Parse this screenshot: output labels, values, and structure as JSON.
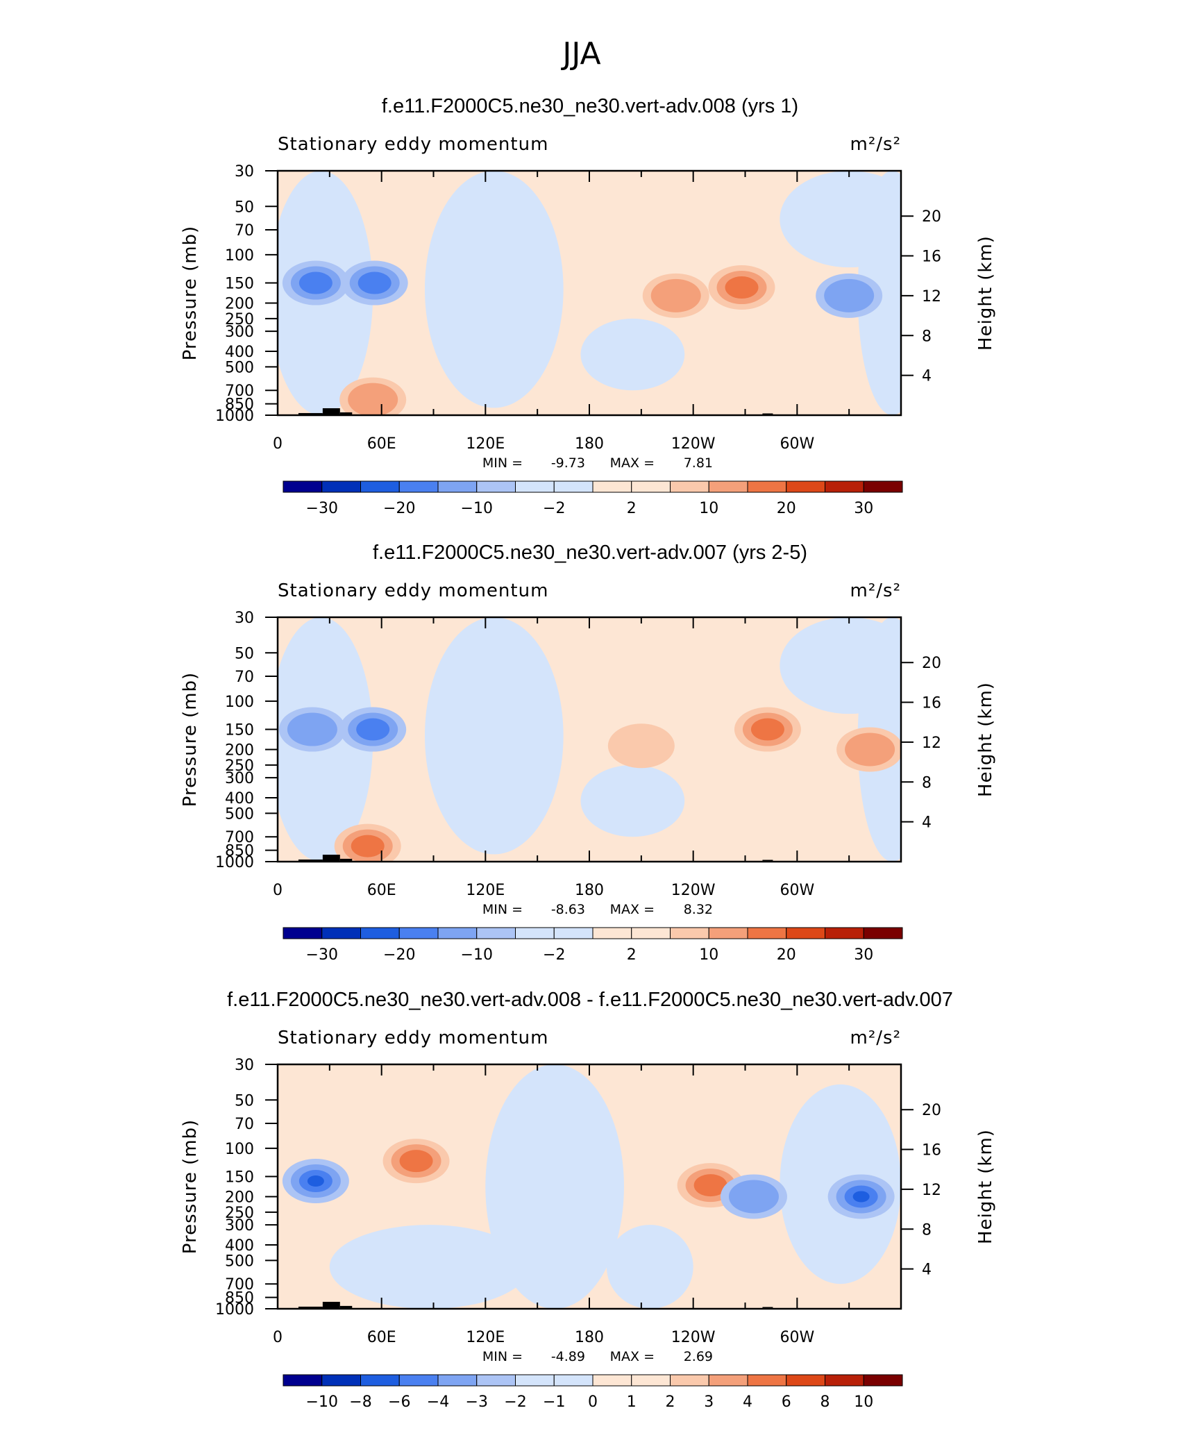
{
  "figure_title": "JJA",
  "colors": {
    "blue": [
      "#00008f",
      "#0030b8",
      "#1e5ee0",
      "#4a80f0",
      "#7ea4f2",
      "#acc4f5",
      "#d4e4fb"
    ],
    "red": [
      "#fde6d4",
      "#fac9ac",
      "#f4a07a",
      "#ee7544",
      "#dd4818",
      "#b82008",
      "#7a0000"
    ],
    "topography": "#000000"
  },
  "chart_data": [
    {
      "type": "contour",
      "title": "f.e11.F2000C5.ne30_ne30.vert-adv.008 (yrs 1)",
      "left_string": "Stationary eddy momentum",
      "units": "m²/s²",
      "ylabel": "Pressure  (mb)",
      "ylabel_right": "Height  (km)",
      "pressure_ticks": [
        "30",
        "50",
        "70",
        "100",
        "150",
        "200",
        "250",
        "300",
        "400",
        "500",
        "700",
        "850",
        "1000"
      ],
      "height_ticks": [
        "20",
        "16",
        "12",
        "8",
        "4"
      ],
      "xticks": [
        "0",
        "60E",
        "120E",
        "180",
        "120W",
        "60W"
      ],
      "min_label": "MIN =",
      "min_value": "-9.73",
      "max_label": "MAX =",
      "max_value": "7.81",
      "colorbar_labels": [
        "−30",
        "−20",
        "−10",
        "−2",
        "2",
        "10",
        "20",
        "30"
      ],
      "features": [
        {
          "lon": 22,
          "p": 150,
          "value": -8
        },
        {
          "lon": 56,
          "p": 150,
          "value": -7
        },
        {
          "lon": 55,
          "p": 800,
          "value": 6
        },
        {
          "lon": 268,
          "p": 160,
          "value": 7
        },
        {
          "lon": 230,
          "p": 180,
          "value": 5
        },
        {
          "lon": 330,
          "p": 180,
          "value": -5
        }
      ]
    },
    {
      "type": "contour",
      "title": "f.e11.F2000C5.ne30_ne30.vert-adv.007 (yrs 2-5)",
      "left_string": "Stationary eddy momentum",
      "units": "m²/s²",
      "ylabel": "Pressure  (mb)",
      "ylabel_right": "Height  (km)",
      "pressure_ticks": [
        "30",
        "50",
        "70",
        "100",
        "150",
        "200",
        "250",
        "300",
        "400",
        "500",
        "700",
        "850",
        "1000"
      ],
      "height_ticks": [
        "20",
        "16",
        "12",
        "8",
        "4"
      ],
      "xticks": [
        "0",
        "60E",
        "120E",
        "180",
        "120W",
        "60W"
      ],
      "min_label": "MIN =",
      "min_value": "-8.63",
      "max_label": "MAX =",
      "max_value": "8.32",
      "colorbar_labels": [
        "−30",
        "−20",
        "−10",
        "−2",
        "2",
        "10",
        "20",
        "30"
      ],
      "features": [
        {
          "lon": 20,
          "p": 150,
          "value": -6
        },
        {
          "lon": 55,
          "p": 150,
          "value": -8
        },
        {
          "lon": 52,
          "p": 800,
          "value": 7
        },
        {
          "lon": 283,
          "p": 150,
          "value": 8
        },
        {
          "lon": 210,
          "p": 190,
          "value": 4
        },
        {
          "lon": 342,
          "p": 200,
          "value": 5
        }
      ]
    },
    {
      "type": "contour",
      "title": "f.e11.F2000C5.ne30_ne30.vert-adv.008 - f.e11.F2000C5.ne30_ne30.vert-adv.007",
      "left_string": "Stationary eddy momentum",
      "units": "m²/s²",
      "ylabel": "Pressure  (mb)",
      "ylabel_right": "Height  (km)",
      "pressure_ticks": [
        "30",
        "50",
        "70",
        "100",
        "150",
        "200",
        "250",
        "300",
        "400",
        "500",
        "700",
        "850",
        "1000"
      ],
      "height_ticks": [
        "20",
        "16",
        "12",
        "8",
        "4"
      ],
      "xticks": [
        "0",
        "60E",
        "120E",
        "180",
        "120W",
        "60W"
      ],
      "min_label": "MIN =",
      "min_value": "-4.89",
      "max_label": "MAX =",
      "max_value": "2.69",
      "colorbar_labels": [
        "−10",
        "−8",
        "−6",
        "−4",
        "−3",
        "−2",
        "−1",
        "0",
        "1",
        "2",
        "3",
        "4",
        "6",
        "8",
        "10"
      ],
      "features": [
        {
          "lon": 22,
          "p": 160,
          "value": -4
        },
        {
          "lon": 80,
          "p": 120,
          "value": 2.5
        },
        {
          "lon": 250,
          "p": 170,
          "value": 2.5
        },
        {
          "lon": 337,
          "p": 200,
          "value": -4.5
        },
        {
          "lon": 275,
          "p": 200,
          "value": -2
        }
      ]
    }
  ]
}
